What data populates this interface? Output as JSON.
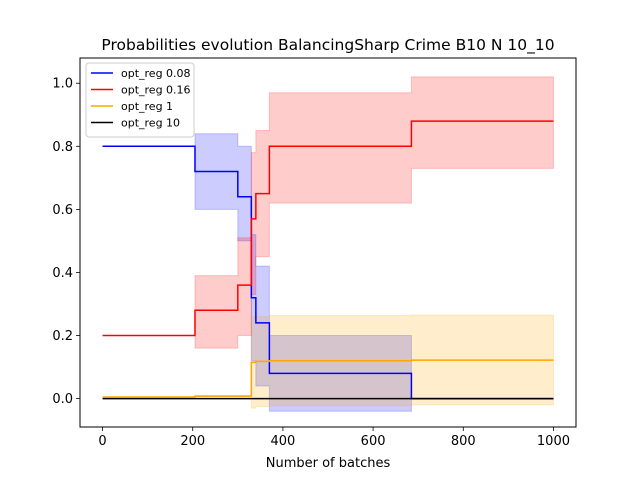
{
  "chart_data": {
    "type": "line",
    "title": "Probabilities evolution BalancingSharp Crime B10 N 10_10",
    "xlabel": "Number of batches",
    "ylabel": "",
    "xlim": [
      -50,
      1050
    ],
    "ylim": [
      -0.09,
      1.08
    ],
    "xticks": [
      0,
      200,
      400,
      600,
      800,
      1000
    ],
    "yticks": [
      0.0,
      0.2,
      0.4,
      0.6,
      0.8,
      1.0
    ],
    "xtick_labels": [
      "0",
      "200",
      "400",
      "600",
      "800",
      "1000"
    ],
    "ytick_labels": [
      "0.0",
      "0.2",
      "0.4",
      "0.6",
      "0.8",
      "1.0"
    ],
    "grid": false,
    "legend_position": "top-left",
    "series": [
      {
        "name": "opt_reg 0.08",
        "color": "#0000ff",
        "x": [
          0,
          205,
          300,
          330,
          340,
          350,
          370,
          685,
          1000
        ],
        "y": [
          0.8,
          0.72,
          0.64,
          0.32,
          0.24,
          0.24,
          0.08,
          0.0,
          0.0
        ],
        "upper": [
          0.8,
          0.84,
          0.8,
          0.52,
          0.42,
          0.42,
          0.2,
          0.0,
          0.0
        ],
        "lower": [
          0.8,
          0.6,
          0.5,
          0.12,
          0.04,
          0.04,
          -0.04,
          0.0,
          0.0
        ]
      },
      {
        "name": "opt_reg 0.16",
        "color": "#ff0000",
        "x": [
          0,
          205,
          300,
          330,
          340,
          350,
          370,
          685,
          1000
        ],
        "y": [
          0.2,
          0.28,
          0.36,
          0.57,
          0.65,
          0.65,
          0.8,
          0.88,
          0.88
        ],
        "upper": [
          0.2,
          0.39,
          0.51,
          0.78,
          0.85,
          0.85,
          0.97,
          1.02,
          1.02
        ],
        "lower": [
          0.2,
          0.16,
          0.2,
          0.33,
          0.45,
          0.45,
          0.62,
          0.73,
          0.73
        ]
      },
      {
        "name": "opt_reg 1",
        "color": "#ffa500",
        "x": [
          0,
          205,
          300,
          330,
          340,
          350,
          370,
          685,
          1000
        ],
        "y": [
          0.005,
          0.008,
          0.008,
          0.115,
          0.118,
          0.118,
          0.12,
          0.122,
          0.122
        ],
        "upper": [
          0.005,
          0.01,
          0.01,
          0.26,
          0.26,
          0.26,
          0.263,
          0.265,
          0.265
        ],
        "lower": [
          0.005,
          0.005,
          0.005,
          -0.03,
          -0.025,
          -0.025,
          -0.023,
          -0.02,
          -0.02
        ]
      },
      {
        "name": "opt_reg 10",
        "color": "#000000",
        "x": [
          0,
          205,
          300,
          330,
          340,
          350,
          370,
          685,
          1000
        ],
        "y": [
          0.0,
          0.0,
          0.0,
          0.0,
          0.0,
          0.0,
          0.0,
          0.0,
          0.0
        ],
        "upper": [
          0.0,
          0.0,
          0.0,
          0.0,
          0.0,
          0.0,
          0.0,
          0.0,
          0.0
        ],
        "lower": [
          0.0,
          0.0,
          0.0,
          0.0,
          0.0,
          0.0,
          0.0,
          0.0,
          0.0
        ]
      }
    ]
  }
}
